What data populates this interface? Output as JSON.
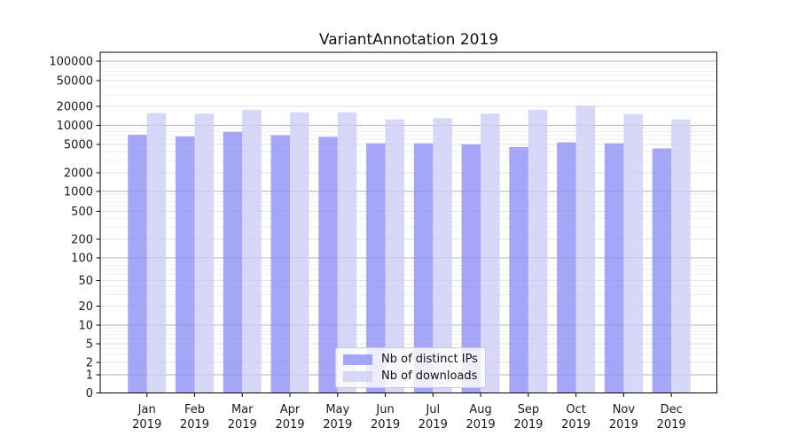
{
  "title": "VariantAnnotation 2019",
  "legend": {
    "items": [
      {
        "label": "Nb of distinct IPs"
      },
      {
        "label": "Nb of downloads"
      }
    ]
  },
  "chart_data": {
    "type": "bar",
    "title": "VariantAnnotation 2019",
    "categories": [
      "Jan",
      "Feb",
      "Mar",
      "Apr",
      "May",
      "Jun",
      "Jul",
      "Aug",
      "Sep",
      "Oct",
      "Nov",
      "Dec"
    ],
    "year_label": "2019",
    "series": [
      {
        "name": "Nb of distinct IPs",
        "color": "#9090f8",
        "values": [
          7100,
          6700,
          7900,
          7000,
          6600,
          5200,
          5200,
          5000,
          4600,
          5400,
          5200,
          4400
        ]
      },
      {
        "name": "Nb of downloads",
        "color": "#cdcdf6",
        "values": [
          15600,
          15300,
          17600,
          16100,
          16100,
          12400,
          13000,
          15300,
          17700,
          20400,
          15100,
          12400
        ]
      }
    ],
    "bar_opacity": 0.8,
    "xlabel": "",
    "ylabel": "",
    "y_axis": {
      "scale": "symlog",
      "ticks": [
        0,
        1,
        2,
        5,
        10,
        20,
        50,
        100,
        200,
        500,
        1000,
        2000,
        5000,
        10000,
        20000,
        50000,
        100000
      ],
      "min": 0,
      "max": 140000
    },
    "grid": true,
    "legend_position": "lower center",
    "colors": {
      "decade_gridline": "#b0b0b0",
      "major_gridline": "#e2e2e2",
      "minor_gridline": "#efefef",
      "axis": "#000000",
      "text": "#1a1a1a"
    }
  }
}
